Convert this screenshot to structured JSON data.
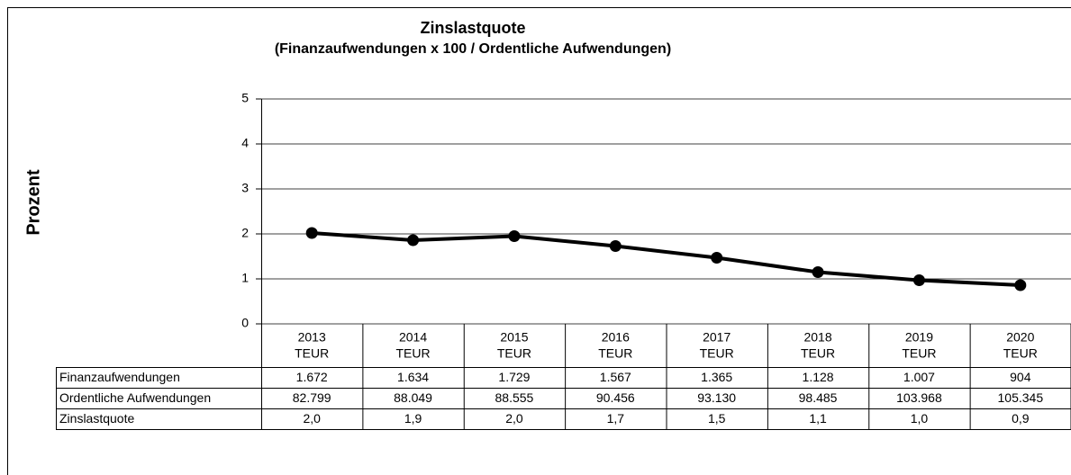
{
  "chart_data": {
    "type": "line",
    "title": "Zinslastquote",
    "subtitle": "(Finanzaufwendungen x 100 / Ordentliche Aufwendungen)",
    "ylabel": "Prozent",
    "categories": [
      "2013",
      "2014",
      "2015",
      "2016",
      "2017",
      "2018",
      "2019",
      "2020"
    ],
    "category_unit": "TEUR",
    "values": [
      2.02,
      1.86,
      1.95,
      1.73,
      1.47,
      1.15,
      0.97,
      0.86
    ],
    "color": "#000000",
    "ylim": [
      0,
      5
    ],
    "yticks": [
      0,
      1,
      2,
      3,
      4,
      5
    ],
    "grid": true
  },
  "table": {
    "rows": [
      {
        "label": "Finanzaufwendungen",
        "cells": [
          "1.672",
          "1.634",
          "1.729",
          "1.567",
          "1.365",
          "1.128",
          "1.007",
          "904"
        ]
      },
      {
        "label": "Ordentliche Aufwendungen",
        "cells": [
          "82.799",
          "88.049",
          "88.555",
          "90.456",
          "93.130",
          "98.485",
          "103.968",
          "105.345"
        ]
      },
      {
        "label": "Zinslastquote",
        "cells": [
          "2,0",
          "1,9",
          "2,0",
          "1,7",
          "1,5",
          "1,1",
          "1,0",
          "0,9"
        ]
      }
    ]
  }
}
